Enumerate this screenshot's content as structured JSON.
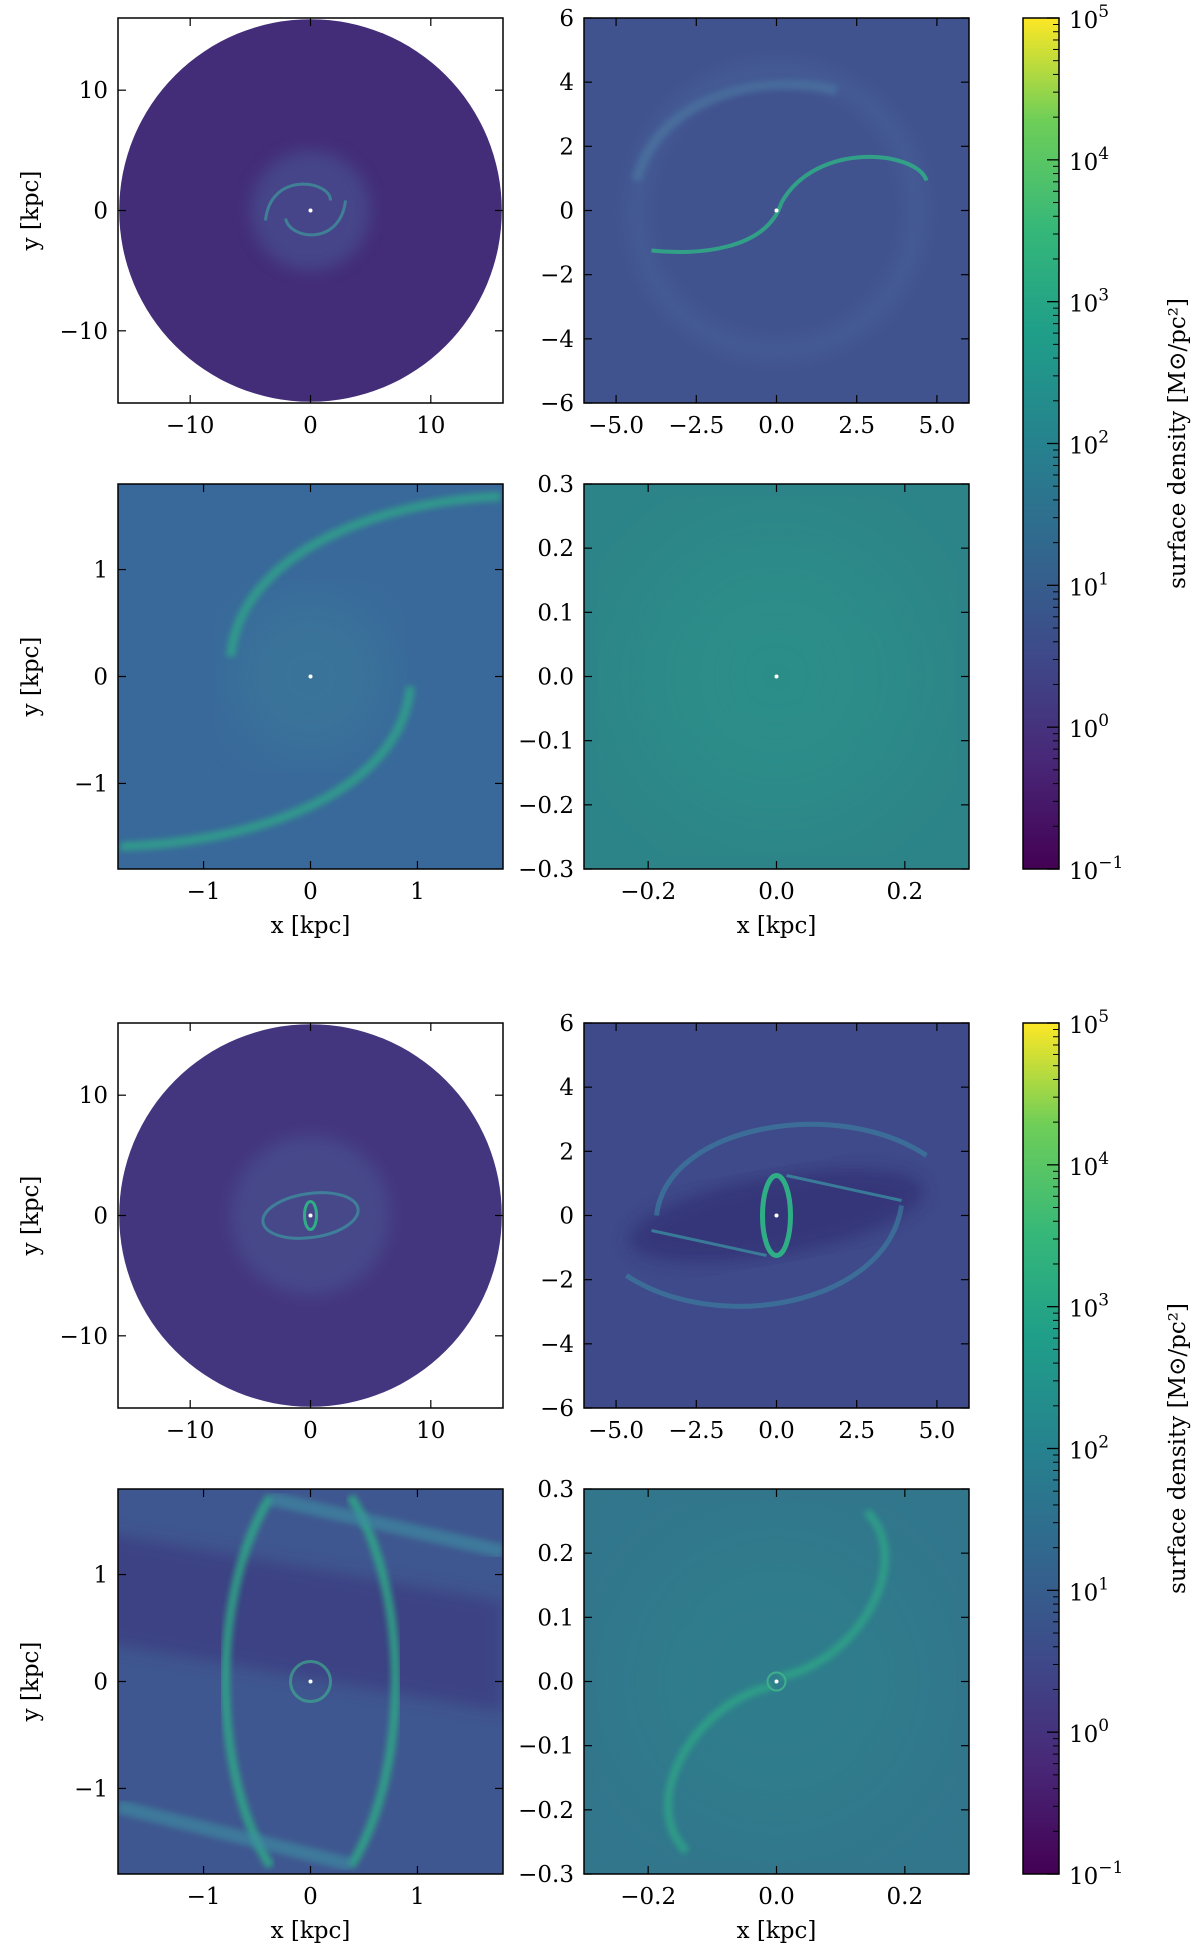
{
  "figure": {
    "groups": [
      {
        "name": "top",
        "colorbar": {
          "label": "surface density [M⊙/pc²]",
          "scale": "log",
          "range": [
            0.1,
            100000
          ],
          "colormap": "viridis",
          "ticks": [
            {
              "base": "10",
              "exp": "−1"
            },
            {
              "base": "10",
              "exp": "0"
            },
            {
              "base": "10",
              "exp": "1"
            },
            {
              "base": "10",
              "exp": "2"
            },
            {
              "base": "10",
              "exp": "3"
            },
            {
              "base": "10",
              "exp": "4"
            },
            {
              "base": "10",
              "exp": "5"
            }
          ]
        },
        "panels": [
          {
            "id": "p1",
            "xlim": [
              -16,
              16
            ],
            "ylim": [
              -16,
              16
            ],
            "xticks": [
              "−10",
              "0",
              "10"
            ],
            "yticks": [
              "−10",
              "0",
              "10"
            ],
            "ylabel": "y [kpc]",
            "xlabel": "",
            "style": "disk",
            "bg": "#432d78",
            "background_log_density": 0.3
          },
          {
            "id": "p2",
            "xlim": [
              -6,
              6
            ],
            "ylim": [
              -6,
              6
            ],
            "xticks": [
              "−5.0",
              "−2.5",
              "0.0",
              "2.5",
              "5.0"
            ],
            "yticks": [
              "−6",
              "−4",
              "−2",
              "0",
              "2",
              "4",
              "6"
            ],
            "ylabel": "",
            "xlabel": "",
            "style": "spiral",
            "bg": "#41538f",
            "background_log_density": 0.8
          },
          {
            "id": "p3",
            "xlim": [
              -1.8,
              1.8
            ],
            "ylim": [
              -1.8,
              1.8
            ],
            "xticks": [
              "−1",
              "0",
              "1"
            ],
            "yticks": [
              "−1",
              "0",
              "1"
            ],
            "ylabel": "y [kpc]",
            "xlabel": "x [kpc]",
            "style": "arm",
            "bg": "#39699a",
            "background_log_density": 1.3
          },
          {
            "id": "p4",
            "xlim": [
              -0.3,
              0.3
            ],
            "ylim": [
              -0.3,
              0.3
            ],
            "xticks": [
              "−0.2",
              "0.0",
              "0.2"
            ],
            "yticks": [
              "−0.3",
              "−0.2",
              "−0.1",
              "0.0",
              "0.1",
              "0.2",
              "0.3"
            ],
            "ylabel": "",
            "xlabel": "x [kpc]",
            "style": "smooth",
            "bg": "#2d8488",
            "background_log_density": 1.8
          }
        ]
      },
      {
        "name": "bottom",
        "colorbar": {
          "label": "surface density [M⊙/pc²]",
          "scale": "log",
          "range": [
            0.1,
            100000
          ],
          "colormap": "viridis",
          "ticks": [
            {
              "base": "10",
              "exp": "−1"
            },
            {
              "base": "10",
              "exp": "0"
            },
            {
              "base": "10",
              "exp": "1"
            },
            {
              "base": "10",
              "exp": "2"
            },
            {
              "base": "10",
              "exp": "3"
            },
            {
              "base": "10",
              "exp": "4"
            },
            {
              "base": "10",
              "exp": "5"
            }
          ]
        },
        "panels": [
          {
            "id": "p5",
            "xlim": [
              -16,
              16
            ],
            "ylim": [
              -16,
              16
            ],
            "xticks": [
              "−10",
              "0",
              "10"
            ],
            "yticks": [
              "−10",
              "0",
              "10"
            ],
            "ylabel": "y [kpc]",
            "xlabel": "",
            "style": "disk-bar",
            "bg": "#44367e",
            "background_log_density": 0.3
          },
          {
            "id": "p6",
            "xlim": [
              -6,
              6
            ],
            "ylim": [
              -6,
              6
            ],
            "xticks": [
              "−5.0",
              "−2.5",
              "0.0",
              "2.5",
              "5.0"
            ],
            "yticks": [
              "−6",
              "−4",
              "−2",
              "0",
              "2",
              "4",
              "6"
            ],
            "ylabel": "",
            "xlabel": "",
            "style": "bar",
            "bg": "#3f4a8a",
            "background_log_density": 0.7
          },
          {
            "id": "p7",
            "xlim": [
              -1.8,
              1.8
            ],
            "ylim": [
              -1.8,
              1.8
            ],
            "xticks": [
              "−1",
              "0",
              "1"
            ],
            "yticks": [
              "−1",
              "0",
              "1"
            ],
            "ylabel": "y [kpc]",
            "xlabel": "x [kpc]",
            "style": "bar-zoom",
            "bg": "#3f5790",
            "background_log_density": 0.9
          },
          {
            "id": "p8",
            "xlim": [
              -0.3,
              0.3
            ],
            "ylim": [
              -0.3,
              0.3
            ],
            "xticks": [
              "−0.2",
              "0.0",
              "0.2"
            ],
            "yticks": [
              "−0.3",
              "−0.2",
              "−0.1",
              "0.0",
              "0.1",
              "0.2",
              "0.3"
            ],
            "ylabel": "",
            "xlabel": "x [kpc]",
            "style": "spiral-inner",
            "bg": "#32768c",
            "background_log_density": 1.5
          }
        ]
      }
    ]
  },
  "chart_data": {
    "type": "heatmap",
    "title": "",
    "quantity": "surface density [M⊙/pc²]",
    "color_scale": "log",
    "color_range": [
      0.1,
      100000
    ],
    "panels": [
      {
        "group": "top",
        "xlabel": "",
        "ylabel": "y [kpc]",
        "xlim": [
          -16,
          16
        ],
        "ylim": [
          -16,
          16
        ]
      },
      {
        "group": "top",
        "xlabel": "",
        "ylabel": "",
        "xlim": [
          -6,
          6
        ],
        "ylim": [
          -6,
          6
        ]
      },
      {
        "group": "top",
        "xlabel": "x [kpc]",
        "ylabel": "y [kpc]",
        "xlim": [
          -1.8,
          1.8
        ],
        "ylim": [
          -1.8,
          1.8
        ]
      },
      {
        "group": "top",
        "xlabel": "x [kpc]",
        "ylabel": "",
        "xlim": [
          -0.3,
          0.3
        ],
        "ylim": [
          -0.3,
          0.3
        ]
      },
      {
        "group": "bottom",
        "xlabel": "",
        "ylabel": "y [kpc]",
        "xlim": [
          -16,
          16
        ],
        "ylim": [
          -16,
          16
        ]
      },
      {
        "group": "bottom",
        "xlabel": "",
        "ylabel": "",
        "xlim": [
          -6,
          6
        ],
        "ylim": [
          -6,
          6
        ]
      },
      {
        "group": "bottom",
        "xlabel": "x [kpc]",
        "ylabel": "y [kpc]",
        "xlim": [
          -1.8,
          1.8
        ],
        "ylim": [
          -1.8,
          1.8
        ]
      },
      {
        "group": "bottom",
        "xlabel": "x [kpc]",
        "ylabel": "",
        "xlim": [
          -0.3,
          0.3
        ],
        "ylim": [
          -0.3,
          0.3
        ]
      }
    ]
  }
}
